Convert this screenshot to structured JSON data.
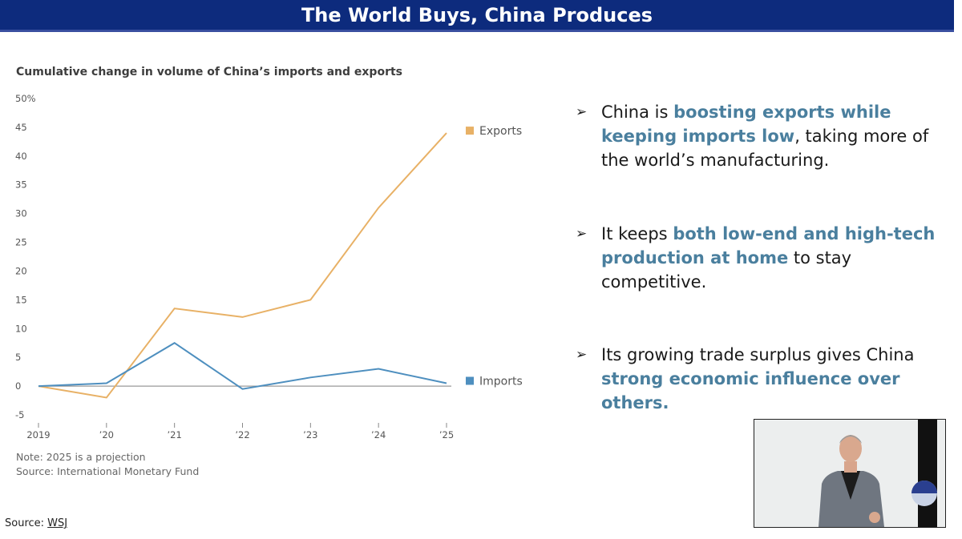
{
  "slide": {
    "title": "The World Buys, China Produces",
    "source_label": "Source:",
    "source_link": "WSJ"
  },
  "chart_title": "Cumulative change in volume of China’s imports and exports",
  "notes": {
    "note": "Note: 2025 is a projection",
    "source": "Source: International Monetary Fund"
  },
  "chart_data": {
    "type": "line",
    "title": "Cumulative change in volume of China’s imports and exports",
    "x": [
      "2019",
      "'20",
      "'21",
      "'22",
      "'23",
      "'24",
      "'25"
    ],
    "x_tick_labels": [
      "2019",
      "’20",
      "’21",
      "’22",
      "’23",
      "’24",
      "’25"
    ],
    "y_tick_labels": [
      "50%",
      "45",
      "40",
      "35",
      "30",
      "25",
      "20",
      "15",
      "10",
      "5",
      "0",
      "-5"
    ],
    "y_ticks": [
      50,
      45,
      40,
      35,
      30,
      25,
      20,
      15,
      10,
      5,
      0,
      -5
    ],
    "ylim": [
      -5,
      50
    ],
    "grid": false,
    "legend": "right, at line ends",
    "series": [
      {
        "name": "Exports",
        "color": "#e8b166",
        "values": [
          0,
          -2,
          13.5,
          12,
          15,
          31,
          44
        ]
      },
      {
        "name": "Imports",
        "color": "#4e8fbf",
        "values": [
          0,
          0.5,
          7.5,
          -0.5,
          1.5,
          3,
          0.5
        ]
      }
    ]
  },
  "bullets": [
    {
      "parts": [
        {
          "text": "China is ",
          "hl": false
        },
        {
          "text": "boosting exports while keeping imports low",
          "hl": true
        },
        {
          "text": ", taking more of the world’s manufacturing.",
          "hl": false
        }
      ]
    },
    {
      "parts": [
        {
          "text": "It keeps ",
          "hl": false
        },
        {
          "text": "both low-end and high-tech production at home",
          "hl": true
        },
        {
          "text": " to stay competitive.",
          "hl": false
        }
      ]
    },
    {
      "parts": [
        {
          "text": "Its growing trade surplus gives China ",
          "hl": false
        },
        {
          "text": "strong economic influence over others.",
          "hl": true
        }
      ]
    }
  ],
  "bullet_marker": "➢",
  "video": {
    "icon": "presenter-video"
  },
  "colors": {
    "title_bar": "#0d2b7d",
    "highlight": "#4a7f9e"
  }
}
